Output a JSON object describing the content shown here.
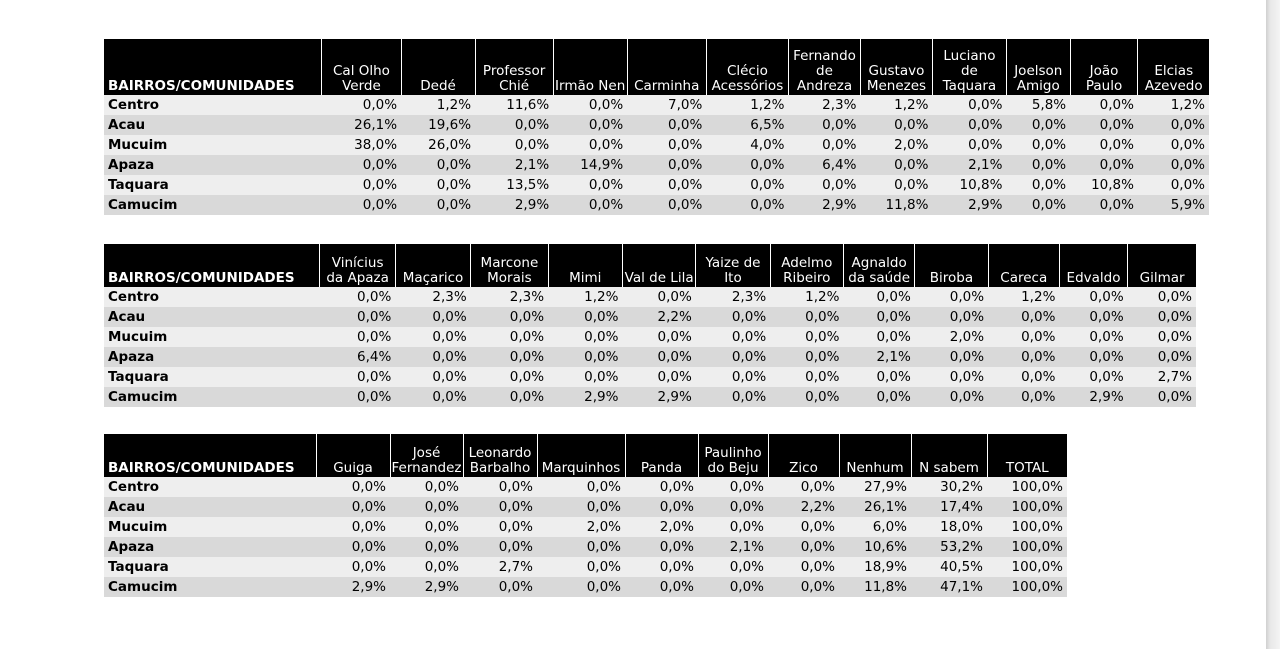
{
  "row_header": "BAIRROS/COMUNIDADES",
  "rows": [
    "Centro",
    "Acau",
    "Mucuim",
    "Apaza",
    "Taquara",
    "Camucim"
  ],
  "tables": [
    {
      "columns": [
        "Cal Olho Verde",
        "Dedé",
        "Professor Chié",
        "Irmão Nen",
        "Carminha",
        "Clécio Acessórios",
        "Fernando de Andreza",
        "Gustavo Menezes",
        "Luciano de Taquara",
        "Joelson Amigo",
        "João Paulo",
        "Elcias Azevedo"
      ],
      "values": [
        [
          "0,0%",
          "1,2%",
          "11,6%",
          "0,0%",
          "7,0%",
          "1,2%",
          "2,3%",
          "1,2%",
          "0,0%",
          "5,8%",
          "0,0%",
          "1,2%"
        ],
        [
          "26,1%",
          "19,6%",
          "0,0%",
          "0,0%",
          "0,0%",
          "6,5%",
          "0,0%",
          "0,0%",
          "0,0%",
          "0,0%",
          "0,0%",
          "0,0%"
        ],
        [
          "38,0%",
          "26,0%",
          "0,0%",
          "0,0%",
          "0,0%",
          "4,0%",
          "0,0%",
          "2,0%",
          "0,0%",
          "0,0%",
          "0,0%",
          "0,0%"
        ],
        [
          "0,0%",
          "0,0%",
          "2,1%",
          "14,9%",
          "0,0%",
          "0,0%",
          "6,4%",
          "0,0%",
          "2,1%",
          "0,0%",
          "0,0%",
          "0,0%"
        ],
        [
          "0,0%",
          "0,0%",
          "13,5%",
          "0,0%",
          "0,0%",
          "0,0%",
          "0,0%",
          "0,0%",
          "10,8%",
          "0,0%",
          "10,8%",
          "0,0%"
        ],
        [
          "0,0%",
          "0,0%",
          "2,9%",
          "0,0%",
          "0,0%",
          "0,0%",
          "2,9%",
          "11,8%",
          "2,9%",
          "0,0%",
          "0,0%",
          "5,9%"
        ]
      ]
    },
    {
      "columns": [
        "Vinícius da Apaza",
        "Maçarico",
        "Marcone Morais",
        "Mimi",
        "Val de Lila",
        "Yaize de Ito",
        "Adelmo Ribeiro",
        "Agnaldo da saúde",
        "Biroba",
        "Careca",
        "Edvaldo",
        "Gilmar"
      ],
      "values": [
        [
          "0,0%",
          "2,3%",
          "2,3%",
          "1,2%",
          "0,0%",
          "2,3%",
          "1,2%",
          "0,0%",
          "0,0%",
          "1,2%",
          "0,0%",
          "0,0%"
        ],
        [
          "0,0%",
          "0,0%",
          "0,0%",
          "0,0%",
          "2,2%",
          "0,0%",
          "0,0%",
          "0,0%",
          "0,0%",
          "0,0%",
          "0,0%",
          "0,0%"
        ],
        [
          "0,0%",
          "0,0%",
          "0,0%",
          "0,0%",
          "0,0%",
          "0,0%",
          "0,0%",
          "0,0%",
          "2,0%",
          "0,0%",
          "0,0%",
          "0,0%"
        ],
        [
          "6,4%",
          "0,0%",
          "0,0%",
          "0,0%",
          "0,0%",
          "0,0%",
          "0,0%",
          "2,1%",
          "0,0%",
          "0,0%",
          "0,0%",
          "0,0%"
        ],
        [
          "0,0%",
          "0,0%",
          "0,0%",
          "0,0%",
          "0,0%",
          "0,0%",
          "0,0%",
          "0,0%",
          "0,0%",
          "0,0%",
          "0,0%",
          "2,7%"
        ],
        [
          "0,0%",
          "0,0%",
          "0,0%",
          "2,9%",
          "2,9%",
          "0,0%",
          "0,0%",
          "0,0%",
          "0,0%",
          "0,0%",
          "2,9%",
          "0,0%"
        ]
      ]
    },
    {
      "columns": [
        "Guiga",
        "José Fernandez",
        "Leonardo Barbalho",
        "Marquinhos",
        "Panda",
        "Paulinho do Beju",
        "Zico",
        "Nenhum",
        "N sabem",
        "TOTAL"
      ],
      "values": [
        [
          "0,0%",
          "0,0%",
          "0,0%",
          "0,0%",
          "0,0%",
          "0,0%",
          "0,0%",
          "27,9%",
          "30,2%",
          "100,0%"
        ],
        [
          "0,0%",
          "0,0%",
          "0,0%",
          "0,0%",
          "0,0%",
          "0,0%",
          "2,2%",
          "26,1%",
          "17,4%",
          "100,0%"
        ],
        [
          "0,0%",
          "0,0%",
          "0,0%",
          "2,0%",
          "2,0%",
          "0,0%",
          "0,0%",
          "6,0%",
          "18,0%",
          "100,0%"
        ],
        [
          "0,0%",
          "0,0%",
          "0,0%",
          "0,0%",
          "0,0%",
          "2,1%",
          "0,0%",
          "10,6%",
          "53,2%",
          "100,0%"
        ],
        [
          "0,0%",
          "0,0%",
          "2,7%",
          "0,0%",
          "0,0%",
          "0,0%",
          "0,0%",
          "18,9%",
          "40,5%",
          "100,0%"
        ],
        [
          "2,9%",
          "2,9%",
          "0,0%",
          "0,0%",
          "0,0%",
          "0,0%",
          "0,0%",
          "11,8%",
          "47,1%",
          "100,0%"
        ]
      ]
    }
  ]
}
